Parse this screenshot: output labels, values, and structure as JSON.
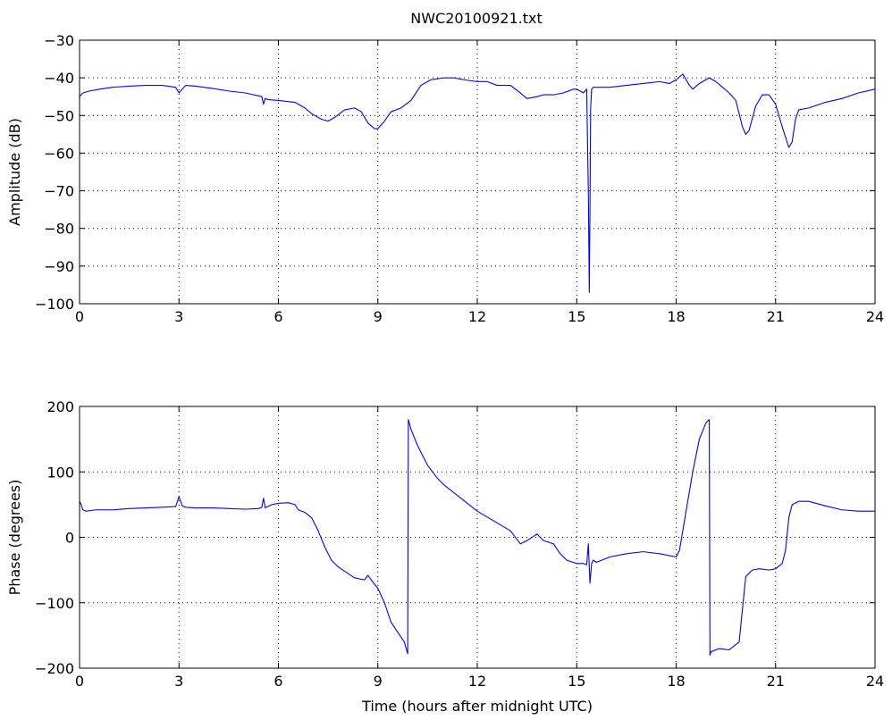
{
  "title": "NWC20100921.txt",
  "series_color": "#0000ff",
  "chart_data": [
    {
      "type": "line",
      "title": "NWC20100921.txt",
      "xlabel": "",
      "ylabel": "Amplitude (dB)",
      "xlim": [
        0,
        24
      ],
      "ylim": [
        -100,
        -30
      ],
      "xticks": [
        0,
        3,
        6,
        9,
        12,
        15,
        18,
        21,
        24
      ],
      "yticks": [
        -100,
        -90,
        -80,
        -70,
        -60,
        -50,
        -40,
        -30
      ],
      "grid": true,
      "series": [
        {
          "x": [
            0,
            0.1,
            0.3,
            0.6,
            1.0,
            1.5,
            2.0,
            2.5,
            2.9,
            3.0,
            3.1,
            3.2,
            3.5,
            4.0,
            4.5,
            5.0,
            5.5,
            5.55,
            5.6,
            5.7,
            6.0,
            6.5,
            6.8,
            7.0,
            7.3,
            7.5,
            7.7,
            8.0,
            8.3,
            8.5,
            8.7,
            8.9,
            9.0,
            9.2,
            9.4,
            9.7,
            10.0,
            10.3,
            10.6,
            11.0,
            11.3,
            11.6,
            12.0,
            12.3,
            12.6,
            13.0,
            13.3,
            13.5,
            13.8,
            14.0,
            14.3,
            14.6,
            14.9,
            15.0,
            15.2,
            15.3,
            15.35,
            15.38,
            15.4,
            15.42,
            15.45,
            15.5,
            15.6,
            16.0,
            16.5,
            17.0,
            17.5,
            17.8,
            18.0,
            18.2,
            18.4,
            18.5,
            18.7,
            18.9,
            19.0,
            19.2,
            19.4,
            19.6,
            19.8,
            20.0,
            20.1,
            20.2,
            20.4,
            20.6,
            20.8,
            21.0,
            21.2,
            21.4,
            21.5,
            21.6,
            21.7,
            22.0,
            22.5,
            23.0,
            23.5,
            24.0
          ],
          "y": [
            -45,
            -44,
            -43.5,
            -43,
            -42.5,
            -42.2,
            -42,
            -42,
            -42.5,
            -44,
            -43,
            -42,
            -42.2,
            -42.8,
            -43.5,
            -44,
            -45,
            -47,
            -45.5,
            -45.8,
            -46,
            -46.5,
            -48,
            -49.5,
            -51,
            -51.5,
            -50.5,
            -48.5,
            -48,
            -49,
            -52,
            -53.5,
            -53.5,
            -51.5,
            -49,
            -48,
            -46,
            -42,
            -40.5,
            -40,
            -40,
            -40.5,
            -41,
            -41,
            -42,
            -42,
            -44,
            -45.5,
            -45,
            -44.5,
            -44.5,
            -44,
            -43,
            -43,
            -44,
            -43,
            -70,
            -97,
            -75,
            -48,
            -43,
            -42.5,
            -42.5,
            -42.5,
            -42,
            -41.5,
            -41,
            -41.5,
            -40.5,
            -39,
            -42,
            -43,
            -41.5,
            -40.5,
            -40,
            -41,
            -42.5,
            -44,
            -46,
            -53,
            -55,
            -54,
            -47.5,
            -44.5,
            -44.5,
            -47,
            -53,
            -58.5,
            -57,
            -51,
            -48.5,
            -48,
            -46.5,
            -45.5,
            -44,
            -43
          ]
        }
      ]
    },
    {
      "type": "line",
      "xlabel": "Time (hours after midnight UTC)",
      "ylabel": "Phase (degrees)",
      "xlim": [
        0,
        24
      ],
      "ylim": [
        -200,
        200
      ],
      "xticks": [
        0,
        3,
        6,
        9,
        12,
        15,
        18,
        21,
        24
      ],
      "yticks": [
        -200,
        -100,
        0,
        100,
        200
      ],
      "grid": true,
      "series": [
        {
          "x": [
            0,
            0.05,
            0.1,
            0.2,
            0.5,
            1.0,
            1.5,
            2.0,
            2.5,
            2.9,
            3.0,
            3.1,
            3.2,
            3.5,
            4.0,
            4.5,
            5.0,
            5.4,
            5.5,
            5.55,
            5.6,
            5.8,
            6.0,
            6.3,
            6.5,
            6.6,
            6.8,
            7.0,
            7.2,
            7.4,
            7.6,
            7.8,
            8.0,
            8.3,
            8.6,
            8.7,
            8.8,
            9.0,
            9.2,
            9.4,
            9.6,
            9.8,
            9.9,
            9.92,
            10.0,
            10.2,
            10.5,
            10.8,
            11.0,
            11.5,
            12.0,
            12.5,
            13.0,
            13.3,
            13.5,
            13.8,
            14.0,
            14.3,
            14.5,
            14.7,
            15.0,
            15.2,
            15.3,
            15.35,
            15.4,
            15.45,
            15.5,
            15.6,
            16.0,
            16.5,
            17.0,
            17.5,
            18.0,
            18.1,
            18.3,
            18.5,
            18.7,
            18.9,
            19.0,
            19.02,
            19.05,
            19.3,
            19.6,
            19.9,
            20.0,
            20.1,
            20.3,
            20.5,
            20.8,
            21.0,
            21.2,
            21.3,
            21.4,
            21.5,
            21.7,
            22.0,
            22.5,
            23.0,
            23.5,
            24.0
          ],
          "y": [
            55,
            50,
            42,
            40,
            42,
            42,
            44,
            45,
            46,
            47,
            62,
            48,
            46,
            45,
            45,
            44,
            43,
            44,
            46,
            60,
            45,
            50,
            52,
            53,
            50,
            42,
            38,
            30,
            10,
            -15,
            -35,
            -45,
            -52,
            -62,
            -65,
            -58,
            -65,
            -78,
            -100,
            -130,
            -145,
            -160,
            -178,
            180,
            165,
            140,
            110,
            90,
            80,
            60,
            40,
            25,
            10,
            -10,
            -5,
            5,
            -5,
            -10,
            -25,
            -35,
            -40,
            -40,
            -42,
            -10,
            -70,
            -40,
            -35,
            -38,
            -30,
            -25,
            -22,
            -25,
            -30,
            -20,
            40,
            100,
            150,
            175,
            180,
            -180,
            -175,
            -170,
            -172,
            -160,
            -110,
            -60,
            -50,
            -48,
            -50,
            -48,
            -40,
            -20,
            30,
            50,
            55,
            55,
            48,
            42,
            40,
            40
          ]
        }
      ]
    }
  ]
}
